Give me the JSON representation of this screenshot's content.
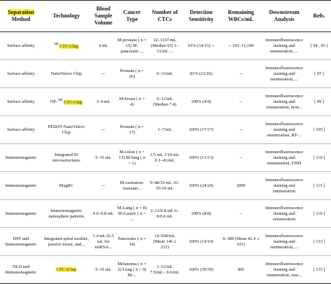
{
  "table": {
    "header": [
      {
        "highlight": "Separation",
        "text": "Method"
      },
      "Technology",
      "Blood Sample Volume",
      "Cancer Type",
      "Number of CTCs",
      "Detection Sensitivity",
      "Remaining WBCs/mL",
      "Downstream Analysis",
      "Refs."
    ],
    "rows": [
      [
        "Surface affinity",
        {
          "sup": "HB",
          "highlight": "CTC-Chip"
        },
        "4 mL",
        "M-prostate ( n = 15) M-pancreatic ...",
        "12–3167/mL (Median 63) 1–31/mL ...",
        "93% (14/15) --",
        "-- 165–11,190",
        "Immunofluorescence staining and enumeration, ...",
        "[ 94 , 95 ]"
      ],
      [
        "Surface affinity",
        "NanoVelcro Chip",
        "--",
        "Prostate ( n = 26)",
        "0–33/mL",
        "81% (21/26)",
        "--",
        "Immunofluorescence staining and enumeration, ...",
        "[ 97 ]"
      ],
      [
        "Surface affinity",
        {
          "prefix": "NP-",
          "sup": "HB",
          "highlight": "CTC-Chip"
        },
        "3–4 mL",
        "M-breast ( n = 4)",
        "6–12/mL (Median 7.4)",
        "100% (4/4)",
        "--",
        "Immunofluorescence staining and enumeration, next...",
        "[ 99 ]"
      ],
      [
        "Surface affinity",
        "PEDOT NanoVelcro Chip",
        "--",
        "Prostate ( n = 17)",
        "1–7/mL",
        "100% (17/17)",
        "--",
        "Immunofluorescence staining and enumeration, RT-...",
        "[ 105 ]"
      ],
      [
        "Immunomagnetic",
        "Integrated Ni microstructures",
        "5–10 mL",
        "M-colon ( n = 13) M-lung ( n = 1)",
        "1/5 mL 1/10 mL 0.1–43/mL",
        "100% (13/13)",
        "--",
        "Immunofluorescence staining and enumeration, FISH",
        "[ 110 ]"
      ],
      [
        "Immunomagnetic",
        "MagRC",
        "--",
        "M-castration-resistant...",
        "9–48/10 mL 16–95/10 mL",
        "100% (24/24)",
        "2000",
        "Immunofluorescence staining and enumeration",
        "[ 115 ]"
      ],
      [
        "Immunomagnetic",
        "Immunomagnetic nanosphere patterns",
        "0.6–0.8 mL",
        "M-Lung ( n = 8) M-Gastric ( n = ...",
        "2–12/0.8 mL 6–8/0.6 mL",
        "100% (8/8)",
        "--",
        "Immunofluorescence staining and enumeration",
        "[ 116 ]"
      ],
      [
        "DFF and Immunomagnetic",
        "Integrated spiral module, passive mixer, and...",
        "1.4 mL (6.5 mL for miRNA...",
        "Pancreatic ( n = 14)",
        "14–938/mL (Mean 146 ± 231)",
        "100% (14/14)",
        "0–389 (Mean 42.4 ± 101)",
        "Immunofluorescence staining and enumeration, ...",
        "[ 133 ]"
      ],
      [
        "DLD and Immunomagnetic",
        {
          "highlight": "CTC-iChip"
        },
        "5–10 mL",
        "Melanoma ( n = 2) Lung ( n = 9) M-...",
        "1–12/mL 7.9/mL– 9.6/mL",
        "100% (39/39)",
        "445",
        "Immunofluorescence staining and enumeration, size...",
        "[ 135 ]"
      ]
    ]
  }
}
